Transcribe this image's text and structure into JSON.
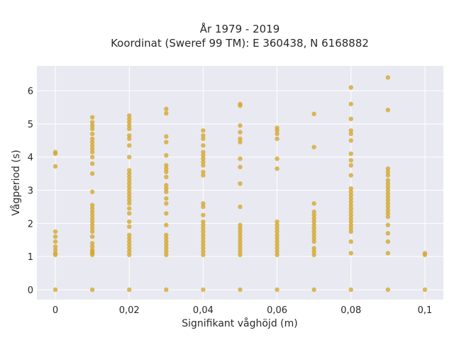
{
  "chart_data": {
    "type": "scatter",
    "title": "År 1979 - 2019",
    "subtitle": "Koordinat (Sweref 99 TM): E 360438, N 6168882",
    "xlabel": "Signifikant våghöjd (m)",
    "ylabel": "Vågperiod (s)",
    "xlim": [
      -0.005,
      0.105
    ],
    "ylim": [
      -0.3,
      6.75
    ],
    "x_ticks": [
      0,
      0.02,
      0.04,
      0.06,
      0.08,
      0.1
    ],
    "x_tick_labels": [
      "0",
      "0,02",
      "0,04",
      "0,06",
      "0,08",
      "0,1"
    ],
    "y_ticks": [
      0,
      1,
      2,
      3,
      4,
      5,
      6
    ],
    "y_tick_labels": [
      "0",
      "1",
      "2",
      "3",
      "4",
      "5",
      "6"
    ],
    "grid": true,
    "marker_color": "#d4a72c",
    "plot_bg": "#e9e9f1",
    "series": [
      {
        "points": [
          [
            0,
            0
          ],
          [
            0,
            1.05
          ],
          [
            0,
            1.1
          ],
          [
            0,
            1.2
          ],
          [
            0,
            1.3
          ],
          [
            0,
            1.45
          ],
          [
            0,
            1.6
          ],
          [
            0,
            1.75
          ],
          [
            0,
            3.72
          ],
          [
            0,
            4.1
          ],
          [
            0,
            4.15
          ],
          [
            0.01,
            0
          ],
          [
            0.01,
            1.05
          ],
          [
            0.01,
            1.1
          ],
          [
            0.01,
            1.15
          ],
          [
            0.01,
            1.2
          ],
          [
            0.01,
            1.3
          ],
          [
            0.01,
            1.4
          ],
          [
            0.01,
            1.6
          ],
          [
            0.01,
            1.75
          ],
          [
            0.01,
            1.85
          ],
          [
            0.01,
            1.95
          ],
          [
            0.01,
            2.05
          ],
          [
            0.01,
            2.15
          ],
          [
            0.01,
            2.25
          ],
          [
            0.01,
            2.35
          ],
          [
            0.01,
            2.45
          ],
          [
            0.01,
            2.55
          ],
          [
            0.01,
            2.95
          ],
          [
            0.01,
            3.5
          ],
          [
            0.01,
            3.8
          ],
          [
            0.01,
            4.0
          ],
          [
            0.01,
            4.15
          ],
          [
            0.01,
            4.25
          ],
          [
            0.01,
            4.35
          ],
          [
            0.01,
            4.45
          ],
          [
            0.01,
            4.55
          ],
          [
            0.01,
            4.7
          ],
          [
            0.01,
            4.85
          ],
          [
            0.01,
            4.95
          ],
          [
            0.01,
            5.05
          ],
          [
            0.01,
            5.2
          ],
          [
            0.02,
            0
          ],
          [
            0.02,
            1.05
          ],
          [
            0.02,
            1.15
          ],
          [
            0.02,
            1.25
          ],
          [
            0.02,
            1.35
          ],
          [
            0.02,
            1.45
          ],
          [
            0.02,
            1.55
          ],
          [
            0.02,
            1.65
          ],
          [
            0.02,
            1.9
          ],
          [
            0.02,
            2.05
          ],
          [
            0.02,
            2.3
          ],
          [
            0.02,
            2.45
          ],
          [
            0.02,
            2.6
          ],
          [
            0.02,
            2.7
          ],
          [
            0.02,
            2.8
          ],
          [
            0.02,
            2.9
          ],
          [
            0.02,
            3.0
          ],
          [
            0.02,
            3.1
          ],
          [
            0.02,
            3.2
          ],
          [
            0.02,
            3.3
          ],
          [
            0.02,
            3.4
          ],
          [
            0.02,
            3.5
          ],
          [
            0.02,
            3.6
          ],
          [
            0.02,
            4.0
          ],
          [
            0.02,
            4.35
          ],
          [
            0.02,
            4.55
          ],
          [
            0.02,
            4.65
          ],
          [
            0.02,
            4.85
          ],
          [
            0.02,
            4.95
          ],
          [
            0.02,
            5.05
          ],
          [
            0.02,
            5.15
          ],
          [
            0.02,
            5.25
          ],
          [
            0.03,
            0
          ],
          [
            0.03,
            1.05
          ],
          [
            0.03,
            1.15
          ],
          [
            0.03,
            1.25
          ],
          [
            0.03,
            1.35
          ],
          [
            0.03,
            1.45
          ],
          [
            0.03,
            1.55
          ],
          [
            0.03,
            1.65
          ],
          [
            0.03,
            1.95
          ],
          [
            0.03,
            2.3
          ],
          [
            0.03,
            2.6
          ],
          [
            0.03,
            2.75
          ],
          [
            0.03,
            2.95
          ],
          [
            0.03,
            3.05
          ],
          [
            0.03,
            3.15
          ],
          [
            0.03,
            3.4
          ],
          [
            0.03,
            3.55
          ],
          [
            0.03,
            3.65
          ],
          [
            0.03,
            3.75
          ],
          [
            0.03,
            4.05
          ],
          [
            0.03,
            4.45
          ],
          [
            0.03,
            4.62
          ],
          [
            0.03,
            5.32
          ],
          [
            0.03,
            5.45
          ],
          [
            0.04,
            0
          ],
          [
            0.04,
            1.05
          ],
          [
            0.04,
            1.15
          ],
          [
            0.04,
            1.25
          ],
          [
            0.04,
            1.35
          ],
          [
            0.04,
            1.45
          ],
          [
            0.04,
            1.55
          ],
          [
            0.04,
            1.65
          ],
          [
            0.04,
            1.75
          ],
          [
            0.04,
            1.85
          ],
          [
            0.04,
            1.95
          ],
          [
            0.04,
            2.05
          ],
          [
            0.04,
            2.25
          ],
          [
            0.04,
            2.5
          ],
          [
            0.04,
            2.6
          ],
          [
            0.04,
            3.45
          ],
          [
            0.04,
            3.55
          ],
          [
            0.04,
            3.75
          ],
          [
            0.04,
            3.85
          ],
          [
            0.04,
            3.95
          ],
          [
            0.04,
            4.05
          ],
          [
            0.04,
            4.15
          ],
          [
            0.04,
            4.35
          ],
          [
            0.04,
            4.55
          ],
          [
            0.04,
            4.65
          ],
          [
            0.04,
            4.8
          ],
          [
            0.05,
            0
          ],
          [
            0.05,
            1.05
          ],
          [
            0.05,
            1.15
          ],
          [
            0.05,
            1.25
          ],
          [
            0.05,
            1.35
          ],
          [
            0.05,
            1.45
          ],
          [
            0.05,
            1.55
          ],
          [
            0.05,
            1.65
          ],
          [
            0.05,
            1.75
          ],
          [
            0.05,
            1.85
          ],
          [
            0.05,
            1.95
          ],
          [
            0.05,
            2.5
          ],
          [
            0.05,
            3.2
          ],
          [
            0.05,
            3.7
          ],
          [
            0.05,
            3.95
          ],
          [
            0.05,
            4.45
          ],
          [
            0.05,
            4.55
          ],
          [
            0.05,
            4.75
          ],
          [
            0.05,
            4.95
          ],
          [
            0.05,
            5.55
          ],
          [
            0.05,
            5.6
          ],
          [
            0.06,
            0
          ],
          [
            0.06,
            1.05
          ],
          [
            0.06,
            1.15
          ],
          [
            0.06,
            1.25
          ],
          [
            0.06,
            1.35
          ],
          [
            0.06,
            1.45
          ],
          [
            0.06,
            1.55
          ],
          [
            0.06,
            1.65
          ],
          [
            0.06,
            1.75
          ],
          [
            0.06,
            1.85
          ],
          [
            0.06,
            1.95
          ],
          [
            0.06,
            2.05
          ],
          [
            0.06,
            3.65
          ],
          [
            0.06,
            3.95
          ],
          [
            0.06,
            4.55
          ],
          [
            0.06,
            4.7
          ],
          [
            0.06,
            4.8
          ],
          [
            0.06,
            4.88
          ],
          [
            0.07,
            0
          ],
          [
            0.07,
            1.05
          ],
          [
            0.07,
            1.15
          ],
          [
            0.07,
            1.25
          ],
          [
            0.07,
            1.45
          ],
          [
            0.07,
            1.55
          ],
          [
            0.07,
            1.65
          ],
          [
            0.07,
            1.75
          ],
          [
            0.07,
            1.85
          ],
          [
            0.07,
            1.95
          ],
          [
            0.07,
            2.05
          ],
          [
            0.07,
            2.15
          ],
          [
            0.07,
            2.25
          ],
          [
            0.07,
            2.35
          ],
          [
            0.07,
            2.6
          ],
          [
            0.07,
            4.3
          ],
          [
            0.07,
            5.3
          ],
          [
            0.08,
            0
          ],
          [
            0.08,
            1.1
          ],
          [
            0.08,
            1.45
          ],
          [
            0.08,
            1.75
          ],
          [
            0.08,
            1.85
          ],
          [
            0.08,
            1.95
          ],
          [
            0.08,
            2.05
          ],
          [
            0.08,
            2.15
          ],
          [
            0.08,
            2.25
          ],
          [
            0.08,
            2.35
          ],
          [
            0.08,
            2.45
          ],
          [
            0.08,
            2.55
          ],
          [
            0.08,
            2.65
          ],
          [
            0.08,
            2.75
          ],
          [
            0.08,
            2.85
          ],
          [
            0.08,
            2.95
          ],
          [
            0.08,
            3.05
          ],
          [
            0.08,
            3.45
          ],
          [
            0.08,
            3.75
          ],
          [
            0.08,
            3.9
          ],
          [
            0.08,
            4.1
          ],
          [
            0.08,
            4.5
          ],
          [
            0.08,
            4.7
          ],
          [
            0.08,
            4.8
          ],
          [
            0.08,
            5.15
          ],
          [
            0.08,
            5.6
          ],
          [
            0.08,
            6.1
          ],
          [
            0.09,
            0
          ],
          [
            0.09,
            1.1
          ],
          [
            0.09,
            1.45
          ],
          [
            0.09,
            1.7
          ],
          [
            0.09,
            1.95
          ],
          [
            0.09,
            2.2
          ],
          [
            0.09,
            2.3
          ],
          [
            0.09,
            2.4
          ],
          [
            0.09,
            2.5
          ],
          [
            0.09,
            2.6
          ],
          [
            0.09,
            2.7
          ],
          [
            0.09,
            2.8
          ],
          [
            0.09,
            2.9
          ],
          [
            0.09,
            3.0
          ],
          [
            0.09,
            3.1
          ],
          [
            0.09,
            3.2
          ],
          [
            0.09,
            3.3
          ],
          [
            0.09,
            3.45
          ],
          [
            0.09,
            3.55
          ],
          [
            0.09,
            3.65
          ],
          [
            0.09,
            5.42
          ],
          [
            0.09,
            6.4
          ],
          [
            0.1,
            0
          ],
          [
            0.1,
            1.05
          ],
          [
            0.1,
            1.1
          ]
        ]
      }
    ]
  }
}
